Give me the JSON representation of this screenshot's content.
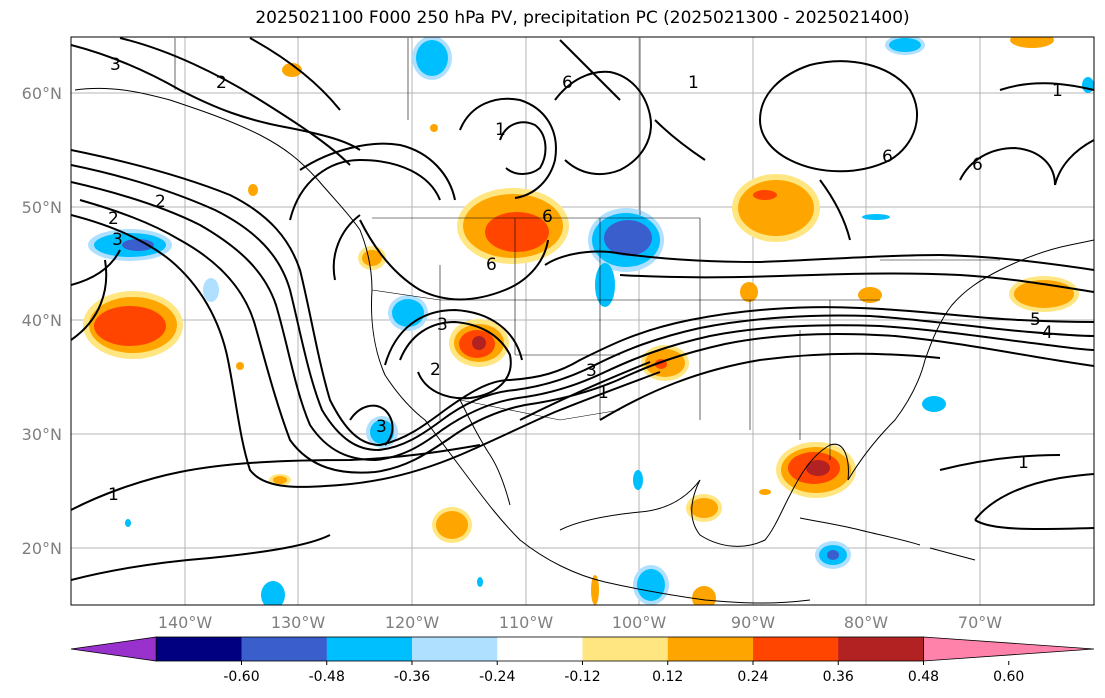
{
  "title": "2025021100 F000 250 hPa PV, precipitation PC (2025021300 - 2025021400)",
  "map": {
    "lon_range": [
      -150,
      -60
    ],
    "lat_range": [
      15,
      65
    ],
    "lat_ticks": [
      "20°N",
      "30°N",
      "40°N",
      "50°N",
      "60°N"
    ],
    "lon_ticks": [
      "140°W",
      "130°W",
      "120°W",
      "110°W",
      "100°W",
      "90°W",
      "80°W",
      "70°W"
    ],
    "gridlines": true,
    "pv_contour_labels": [
      "3",
      "2",
      "1",
      "6",
      "1",
      "6",
      "6",
      "1",
      "2",
      "2",
      "3",
      "6",
      "6",
      "3",
      "2",
      "3",
      "3",
      "1",
      "5",
      "4",
      "1",
      "1"
    ]
  },
  "colorbar": {
    "ticks": [
      "-0.60",
      "-0.48",
      "-0.36",
      "-0.24",
      "-0.12",
      "0.12",
      "0.24",
      "0.36",
      "0.48",
      "0.60"
    ],
    "colors": [
      "#9932cc",
      "#000080",
      "#3a5fcd",
      "#00bfff",
      "#b0e0ff",
      "#ffffff",
      "#ffe680",
      "#ffa500",
      "#ff4500",
      "#b22222",
      "#ff82ab"
    ]
  }
}
